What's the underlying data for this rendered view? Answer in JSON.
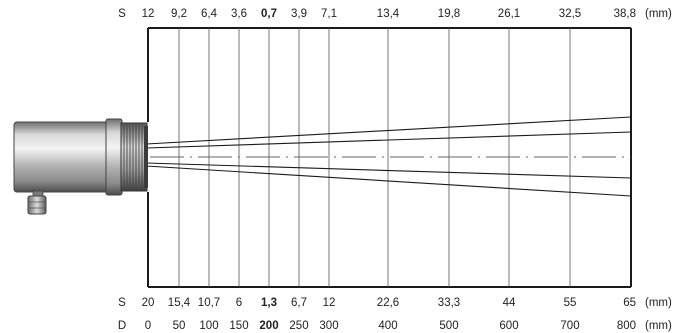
{
  "diagram": {
    "top_row": {
      "prefix": "S",
      "unit": "(mm)",
      "values": [
        "12",
        "9,2",
        "6,4",
        "3,6",
        "0,7",
        "3,9",
        "7,1",
        "13,4",
        "19,8",
        "26,1",
        "32,5",
        "38,8"
      ],
      "bold_index": 4
    },
    "bottom_row": {
      "prefix": "S",
      "unit": "(mm)",
      "values": [
        "20",
        "15,4",
        "10,7",
        "6",
        "1,3",
        "6,7",
        "12",
        "22,6",
        "33,3",
        "44",
        "55",
        "65"
      ],
      "bold_index": 4
    },
    "distance_row": {
      "prefix": "D",
      "unit": "(mm)",
      "values": [
        "0",
        "50",
        "100",
        "150",
        "200",
        "250",
        "300",
        "400",
        "500",
        "600",
        "700",
        "800"
      ],
      "bold_index": 4
    },
    "colors": {
      "line": "#1a1a1a",
      "grid": "#555555",
      "sensor_body": "#b8b8b8"
    }
  }
}
